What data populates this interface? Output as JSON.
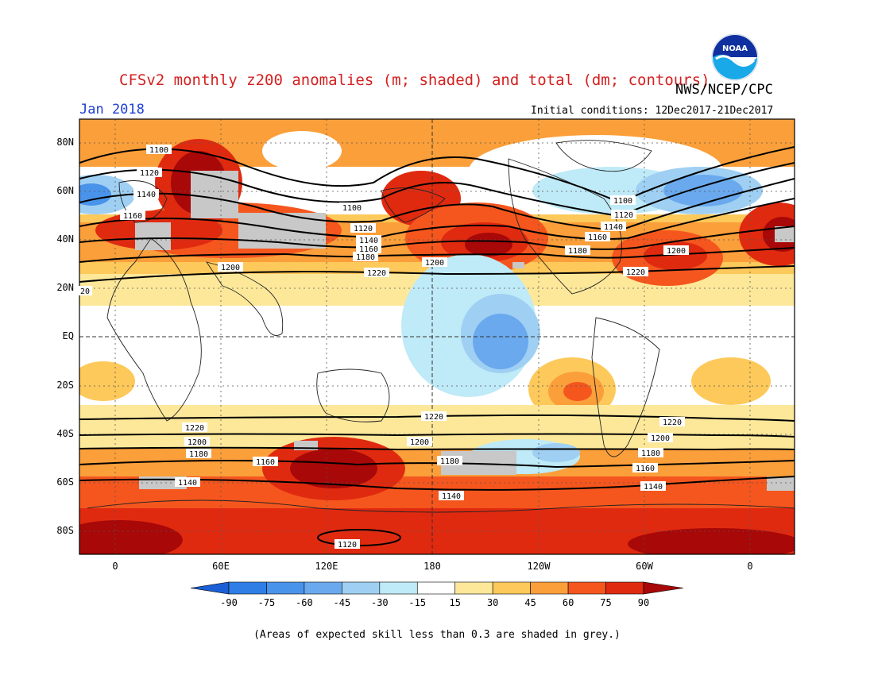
{
  "title": "CFSv2 monthly z200 anomalies (m; shaded) and total (dm; contours)",
  "org": "NWS/NCEP/CPC",
  "period": "Jan 2018",
  "initial_conditions": "Initial conditions: 12Dec2017-21Dec2017",
  "footnote": "(Areas of expected skill less than 0.3 are shaded in grey.)",
  "logo_text": "NOAA",
  "lat_labels": [
    "80N",
    "60N",
    "40N",
    "20N",
    "EQ",
    "20S",
    "40S",
    "60S",
    "80S"
  ],
  "lon_labels": [
    "0",
    "60E",
    "120E",
    "180",
    "120W",
    "60W",
    "0"
  ],
  "colorbar": {
    "ticks": [
      "-90",
      "-75",
      "-60",
      "-45",
      "-30",
      "-15",
      "15",
      "30",
      "45",
      "60",
      "75",
      "90"
    ],
    "colors": [
      "#1a5fd6",
      "#2f7ee6",
      "#4a93ea",
      "#6aa9ee",
      "#9fd0f3",
      "#bfeaf7",
      "#ffffff",
      "#fde89a",
      "#fdc95a",
      "#fb9f3a",
      "#f5561e",
      "#e02a10",
      "#a80808"
    ]
  },
  "contour_labels": {
    "north": [
      "1100",
      "1120",
      "1140",
      "1160",
      "1100",
      "1120",
      "1140",
      "1160",
      "1180",
      "1200",
      "1220",
      "1100",
      "1120",
      "1140",
      "1160",
      "1180",
      "1200",
      "1220",
      "1200",
      "20"
    ],
    "south": [
      "1220",
      "1200",
      "1180",
      "1140",
      "1160",
      "1220",
      "1200",
      "1180",
      "1140",
      "1220",
      "1200",
      "1180",
      "1160",
      "1140",
      "1120"
    ]
  }
}
